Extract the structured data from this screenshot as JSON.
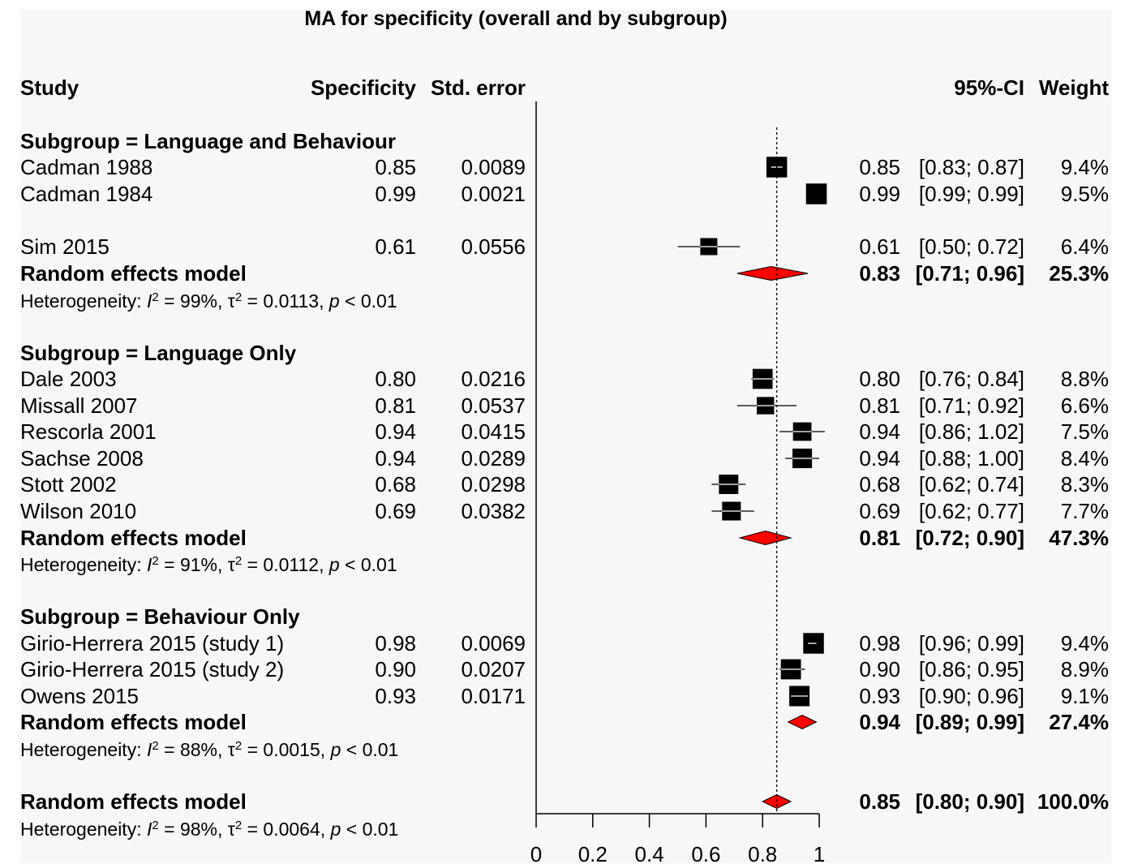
{
  "title": "MA for specificity (overall and by subgroup)",
  "headers": {
    "study": "Study",
    "specificity": "Specificity",
    "std_error": "Std. error",
    "ci": "95%-CI",
    "weight": "Weight"
  },
  "colors": {
    "study_marker": "#000000",
    "diamond_fill": "#ff0000",
    "ci_line_inside": "#ffffff",
    "panel_background": "#f7f7f7"
  },
  "chart_data": {
    "type": "forest",
    "xlim": [
      0,
      1
    ],
    "x_ticks": [
      0,
      0.2,
      0.4,
      0.6,
      0.8,
      1
    ],
    "x_tick_labels": [
      "0",
      "0.2",
      "0.4",
      "0.6",
      "0.8",
      "1"
    ],
    "reference_line": 0.85,
    "subgroups": [
      {
        "label": "Subgroup = Language and Behaviour",
        "studies": [
          {
            "name": "Cadman 1988",
            "spec": "0.85",
            "se": "0.0089",
            "est": 0.85,
            "lo": 0.83,
            "hi": 0.87,
            "ci": "[0.83; 0.87]",
            "weight": "9.4%",
            "w": 9.4
          },
          {
            "name": "Cadman 1984",
            "spec": "0.99",
            "se": "0.0021",
            "est": 0.99,
            "lo": 0.99,
            "hi": 0.99,
            "ci": "[0.99; 0.99]",
            "weight": "9.5%",
            "w": 9.5
          },
          {
            "name": "Sim 2015",
            "spec": "0.61",
            "se": "0.0556",
            "est": 0.61,
            "lo": 0.5,
            "hi": 0.72,
            "ci": "[0.50; 0.72]",
            "weight": "6.4%",
            "w": 6.4
          }
        ],
        "pooled": {
          "label": "Random effects model",
          "est": 0.83,
          "lo": 0.71,
          "hi": 0.96,
          "est_text": "0.83",
          "ci": "[0.71; 0.96]",
          "weight": "25.3%"
        },
        "heterogeneity": {
          "i2": "99%",
          "tau2": "0.0113",
          "p": "< 0.01"
        }
      },
      {
        "label": "Subgroup = Language Only",
        "studies": [
          {
            "name": "Dale 2003",
            "spec": "0.80",
            "se": "0.0216",
            "est": 0.8,
            "lo": 0.76,
            "hi": 0.84,
            "ci": "[0.76; 0.84]",
            "weight": "8.8%",
            "w": 8.8
          },
          {
            "name": "Missall 2007",
            "spec": "0.81",
            "se": "0.0537",
            "est": 0.81,
            "lo": 0.71,
            "hi": 0.92,
            "ci": "[0.71; 0.92]",
            "weight": "6.6%",
            "w": 6.6
          },
          {
            "name": "Rescorla 2001",
            "spec": "0.94",
            "se": "0.0415",
            "est": 0.94,
            "lo": 0.86,
            "hi": 1.02,
            "ci": "[0.86; 1.02]",
            "weight": "7.5%",
            "w": 7.5
          },
          {
            "name": "Sachse 2008",
            "spec": "0.94",
            "se": "0.0289",
            "est": 0.94,
            "lo": 0.88,
            "hi": 1.0,
            "ci": "[0.88; 1.00]",
            "weight": "8.4%",
            "w": 8.4
          },
          {
            "name": "Stott 2002",
            "spec": "0.68",
            "se": "0.0298",
            "est": 0.68,
            "lo": 0.62,
            "hi": 0.74,
            "ci": "[0.62; 0.74]",
            "weight": "8.3%",
            "w": 8.3
          },
          {
            "name": "Wilson 2010",
            "spec": "0.69",
            "se": "0.0382",
            "est": 0.69,
            "lo": 0.62,
            "hi": 0.77,
            "ci": "[0.62; 0.77]",
            "weight": "7.7%",
            "w": 7.7
          }
        ],
        "pooled": {
          "label": "Random effects model",
          "est": 0.81,
          "lo": 0.72,
          "hi": 0.9,
          "est_text": "0.81",
          "ci": "[0.72; 0.90]",
          "weight": "47.3%"
        },
        "heterogeneity": {
          "i2": "91%",
          "tau2": "0.0112",
          "p": "< 0.01"
        }
      },
      {
        "label": "Subgroup = Behaviour Only",
        "studies": [
          {
            "name": "Girio-Herrera 2015 (study 1)",
            "spec": "0.98",
            "se": "0.0069",
            "est": 0.98,
            "lo": 0.96,
            "hi": 0.99,
            "ci": "[0.96; 0.99]",
            "weight": "9.4%",
            "w": 9.4
          },
          {
            "name": "Girio-Herrera 2015 (study 2)",
            "spec": "0.90",
            "se": "0.0207",
            "est": 0.9,
            "lo": 0.86,
            "hi": 0.95,
            "ci": "[0.86; 0.95]",
            "weight": "8.9%",
            "w": 8.9
          },
          {
            "name": "Owens 2015",
            "spec": "0.93",
            "se": "0.0171",
            "est": 0.93,
            "lo": 0.9,
            "hi": 0.96,
            "ci": "[0.90; 0.96]",
            "weight": "9.1%",
            "w": 9.1
          }
        ],
        "pooled": {
          "label": "Random effects model",
          "est": 0.94,
          "lo": 0.89,
          "hi": 0.99,
          "est_text": "0.94",
          "ci": "[0.89; 0.99]",
          "weight": "27.4%"
        },
        "heterogeneity": {
          "i2": "88%",
          "tau2": "0.0015",
          "p": "< 0.01"
        }
      }
    ],
    "overall": {
      "pooled": {
        "label": "Random effects model",
        "est": 0.85,
        "lo": 0.8,
        "hi": 0.9,
        "est_text": "0.85",
        "ci": "[0.80; 0.90]",
        "weight": "100.0%"
      },
      "heterogeneity": {
        "i2": "98%",
        "tau2": "0.0064",
        "p": "< 0.01"
      }
    }
  }
}
